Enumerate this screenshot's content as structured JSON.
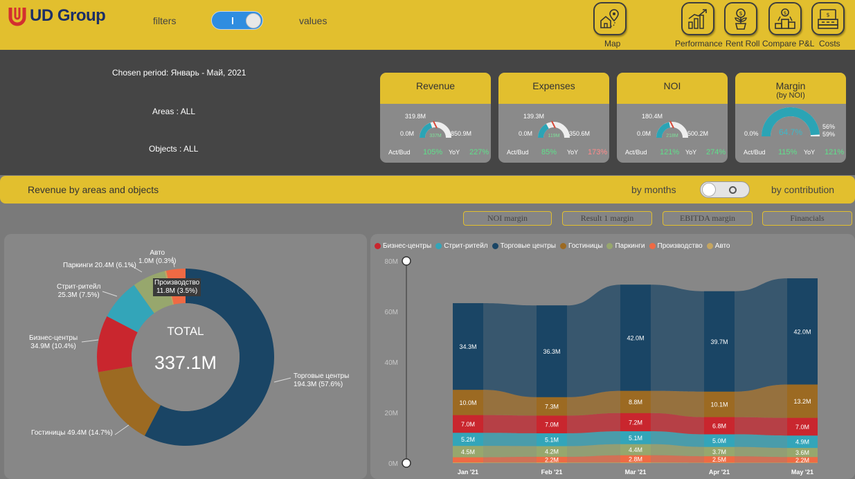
{
  "header": {
    "logo_text": "UD Group",
    "filters_label": "filters",
    "values_label": "values",
    "nav": [
      {
        "label": "Map",
        "icon": "map-pin-house-icon"
      },
      {
        "label": "Performance",
        "icon": "bar-chart-growth-icon"
      },
      {
        "label": "Rent Roll",
        "icon": "money-plant-icon"
      },
      {
        "label": "Compare P&L",
        "icon": "money-podium-icon"
      },
      {
        "label": "Costs",
        "icon": "cash-register-icon"
      }
    ]
  },
  "info": {
    "period": "Chosen period: Январь - Май, 2021",
    "areas": "Areas : ALL",
    "objects": "Objects : ALL"
  },
  "kpis": [
    {
      "title": "Revenue",
      "subtitle": "",
      "top": "319.8M",
      "min": "0.0M",
      "max": "850.9M",
      "center": "337M",
      "actbud_label": "Act/Bud",
      "actbud": "105%",
      "yoy_label": "YoY",
      "yoy": "227%",
      "fraction": 0.396
    },
    {
      "title": "Expenses",
      "subtitle": "",
      "top": "139.3M",
      "min": "0.0M",
      "max": "350.6M",
      "center": "119M",
      "actbud_label": "Act/Bud",
      "actbud": "85%",
      "yoy_label": "YoY",
      "yoy": "173%",
      "fraction": 0.34
    },
    {
      "title": "NOI",
      "subtitle": "",
      "top": "180.4M",
      "min": "0.0M",
      "max": "500.2M",
      "center": "218M",
      "actbud_label": "Act/Bud",
      "actbud": "121%",
      "yoy_label": "YoY",
      "yoy": "274%",
      "fraction": 0.436
    },
    {
      "title": "Margin",
      "subtitle": "(by NOI)",
      "top": "",
      "min": "0.0%",
      "max": "",
      "center": "64.7%",
      "actbud_label": "Act/Bud",
      "actbud": "115%",
      "yoy_label": "YoY",
      "yoy": "121%",
      "max_a": "56%",
      "max_b": "59%",
      "fraction": 0.98
    }
  ],
  "revenue_band": {
    "title": "Revenue by areas and objects",
    "by_months": "by months",
    "by_contribution": "by contribution"
  },
  "pills": [
    "NOI margin",
    "Result 1 margin",
    "EBITDA margin",
    "Financials"
  ],
  "colors": {
    "Бизнес-центры": "#c9262e",
    "Стрит-ритейл": "#33a5b9",
    "Торговые центры": "#1a4565",
    "Гостиницы": "#9c6a22",
    "Паркинги": "#97a76d",
    "Производство": "#ef6a44",
    "Авто": "#c5a560",
    "accent": "#e2bf2e"
  },
  "chart_data": [
    {
      "type": "pie",
      "center_title": "TOTAL",
      "center_value": "337.1M",
      "slices": [
        {
          "name": "Торговые центры",
          "value": 194.3,
          "label": "194.3M (57.6%)"
        },
        {
          "name": "Гостиницы",
          "value": 49.4,
          "label": "49.4M (14.7%)"
        },
        {
          "name": "Бизнес-центры",
          "value": 34.9,
          "label": "34.9M (10.4%)"
        },
        {
          "name": "Стрит-ритейл",
          "value": 25.3,
          "label": "25.3M (7.5%)"
        },
        {
          "name": "Паркинги",
          "value": 20.4,
          "label": "20.4M (6.1%)"
        },
        {
          "name": "Авто",
          "value": 1.0,
          "label": "1.0M (0.3%)"
        },
        {
          "name": "Производство",
          "value": 11.8,
          "label": "11.8M (3.5%)"
        }
      ]
    },
    {
      "type": "area",
      "stacked": true,
      "x": [
        "Jan '21",
        "Feb '21",
        "Mar '21",
        "Apr '21",
        "May '21"
      ],
      "ylim": [
        0,
        80
      ],
      "yticks": [
        "0M",
        "20M",
        "40M",
        "60M",
        "80M"
      ],
      "legend_position": "top-left",
      "series": [
        {
          "name": "Авто",
          "values": [
            0.3,
            0.3,
            0.3,
            0.2,
            0.2
          ],
          "labels": [
            "",
            "",
            "",
            "",
            ""
          ]
        },
        {
          "name": "Производство",
          "values": [
            2.0,
            2.2,
            2.8,
            2.5,
            2.2
          ],
          "labels": [
            "",
            "2.2M",
            "2.8M",
            "2.5M",
            "2.2M"
          ]
        },
        {
          "name": "Паркинги",
          "values": [
            4.5,
            4.2,
            4.4,
            3.7,
            3.6
          ],
          "labels": [
            "4.5M",
            "4.2M",
            "4.4M",
            "3.7M",
            "3.6M"
          ]
        },
        {
          "name": "Стрит-ритейл",
          "values": [
            5.2,
            5.1,
            5.1,
            5.0,
            4.9
          ],
          "labels": [
            "5.2M",
            "5.1M",
            "5.1M",
            "5.0M",
            "4.9M"
          ]
        },
        {
          "name": "Бизнес-центры",
          "values": [
            7.0,
            7.0,
            7.2,
            6.8,
            7.0
          ],
          "labels": [
            "7.0M",
            "7.0M",
            "7.2M",
            "6.8M",
            "7.0M"
          ]
        },
        {
          "name": "Гостиницы",
          "values": [
            10.0,
            7.3,
            8.8,
            10.1,
            13.2
          ],
          "labels": [
            "10.0M",
            "7.3M",
            "8.8M",
            "10.1M",
            "13.2M"
          ]
        },
        {
          "name": "Торговые центры",
          "values": [
            34.3,
            36.3,
            42.0,
            39.7,
            42.0
          ],
          "labels": [
            "34.3M",
            "36.3M",
            "42.0M",
            "39.7M",
            "42.0M"
          ]
        }
      ],
      "legend": [
        "Бизнес-центры",
        "Стрит-ритейл",
        "Торговые центры",
        "Гостиницы",
        "Паркинги",
        "Производство",
        "Авто"
      ]
    }
  ]
}
